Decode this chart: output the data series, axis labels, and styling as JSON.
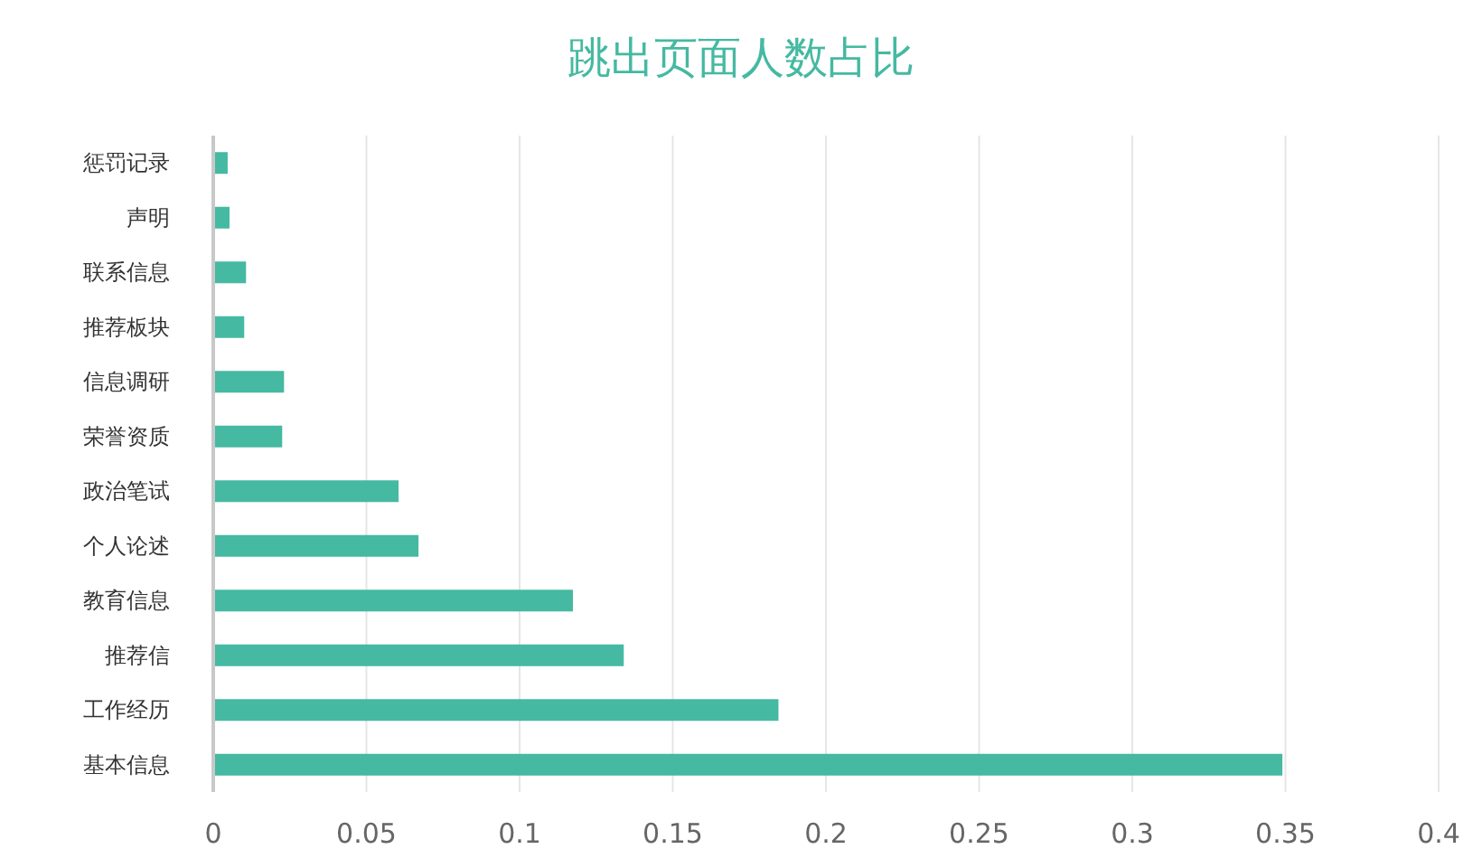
{
  "chart_data": {
    "type": "bar",
    "orientation": "horizontal",
    "title": "跳出页面人数占比",
    "categories": [
      "惩罚记录",
      "声明",
      "联系信息",
      "推荐板块",
      "信息调研",
      "荣誉资质",
      "政治笔试",
      "个人论述",
      "教育信息",
      "推荐信",
      "工作经历",
      "基本信息"
    ],
    "values": [
      0.0047,
      0.0053,
      0.0107,
      0.0101,
      0.0231,
      0.0225,
      0.0605,
      0.067,
      0.1174,
      0.134,
      0.1845,
      0.349
    ],
    "color": "#45b9a1",
    "xlim": [
      0,
      0.4
    ],
    "xticks": [
      0,
      0.05,
      0.1,
      0.15,
      0.2,
      0.25,
      0.3,
      0.35,
      0.4
    ],
    "grid": "x"
  }
}
